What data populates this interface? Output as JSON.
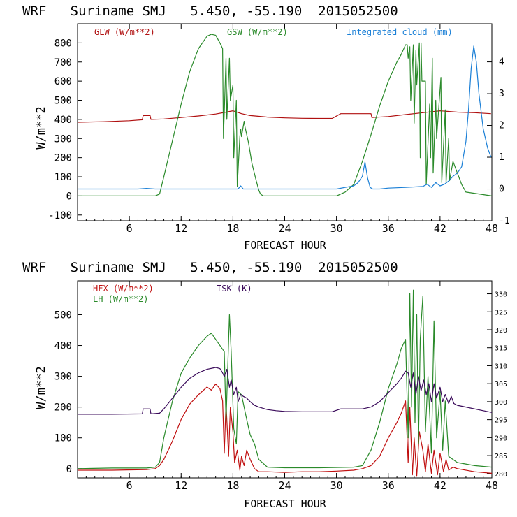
{
  "colors": {
    "glw": "#b01010",
    "gsw": "#2a8a2a",
    "cloud": "#1a7fd6",
    "hfx": "#c01010",
    "lh": "#2a8a2a",
    "tsk": "#3a0a5a",
    "axis": "#000000"
  },
  "chart_data": [
    {
      "type": "line",
      "title": "WRF   Suriname SMJ   5.450, -55.190  2015052500",
      "xlabel": "FORECAST HOUR",
      "ylabel": "W/m**2",
      "xlim": [
        0,
        48
      ],
      "ylim": [
        -130,
        900
      ],
      "y2lim": [
        -1,
        5.2
      ],
      "x_ticks": [
        "6",
        "12",
        "18",
        "24",
        "30",
        "36",
        "42",
        "48"
      ],
      "y_ticks": [
        "-100",
        "0",
        "100",
        "200",
        "300",
        "400",
        "500",
        "600",
        "700",
        "800"
      ],
      "y2_ticks": [
        "-1",
        "0",
        "1",
        "2",
        "3",
        "4"
      ],
      "series": [
        {
          "name": "GLW (W/m**2)",
          "axis": "left",
          "x": [
            0,
            3,
            6,
            7.5,
            7.6,
            8.4,
            8.5,
            10,
            12,
            14,
            16,
            17,
            18,
            19,
            20,
            22,
            24,
            26,
            28,
            29.5,
            30.5,
            32,
            34,
            34.1,
            36,
            38,
            40,
            42,
            44,
            46,
            47.9
          ],
          "values": [
            385,
            388,
            393,
            398,
            420,
            420,
            400,
            402,
            410,
            418,
            428,
            436,
            445,
            430,
            420,
            412,
            408,
            406,
            405,
            405,
            430,
            430,
            430,
            410,
            415,
            425,
            435,
            445,
            438,
            435,
            430
          ]
        },
        {
          "name": "GSW (W/m**2)",
          "axis": "left",
          "x": [
            0,
            9,
            9.5,
            10,
            11,
            12,
            13,
            14,
            15,
            15.5,
            16,
            16.5,
            16.8,
            16.9,
            17.2,
            17.3,
            17.6,
            17.7,
            18,
            18.1,
            18.4,
            18.5,
            18.8,
            18.9,
            19,
            19.3,
            19.4,
            19.8,
            20.2,
            20.7,
            21,
            21.2,
            21.5,
            30,
            31,
            32,
            33,
            34,
            35,
            36,
            37,
            37.5,
            38,
            38.2,
            38.3,
            38.5,
            38.6,
            38.9,
            39,
            39.2,
            39.3,
            39.6,
            39.7,
            39.8,
            39.9,
            40.3,
            40.4,
            40.8,
            40.9,
            41.1,
            41.2,
            41.5,
            41.6,
            42.1,
            42.2,
            42.6,
            42.7,
            43,
            43.1,
            43.5,
            44,
            44.5,
            45,
            48
          ],
          "values": [
            0,
            0,
            10,
            100,
            290,
            480,
            650,
            770,
            835,
            845,
            840,
            800,
            770,
            300,
            720,
            400,
            720,
            500,
            580,
            200,
            500,
            50,
            310,
            350,
            310,
            390,
            360,
            280,
            170,
            80,
            30,
            10,
            0,
            0,
            20,
            60,
            180,
            320,
            470,
            600,
            700,
            740,
            790,
            790,
            720,
            780,
            500,
            790,
            380,
            760,
            580,
            800,
            200,
            800,
            600,
            600,
            60,
            480,
            200,
            720,
            120,
            500,
            300,
            620,
            70,
            450,
            70,
            300,
            80,
            180,
            120,
            60,
            20,
            0
          ]
        },
        {
          "name": "Integrated cloud (mm)",
          "axis": "right",
          "x": [
            0,
            7,
            8,
            9,
            18.6,
            18.9,
            19.2,
            30,
            31,
            32,
            32.5,
            33,
            33.3,
            33.6,
            33.9,
            34.2,
            35,
            36,
            38,
            40,
            40.5,
            41,
            41.5,
            42,
            42.5,
            43,
            43.5,
            44,
            44.5,
            45,
            45.3,
            45.6,
            45.9,
            46.2,
            46.5,
            47,
            47.5,
            47.9
          ],
          "values": [
            0,
            0,
            0.02,
            0,
            0,
            0.1,
            0,
            0,
            0.05,
            0.1,
            0.2,
            0.4,
            0.85,
            0.35,
            0.05,
            0,
            0,
            0.03,
            0.05,
            0.08,
            0.15,
            0.05,
            0.2,
            0.1,
            0.15,
            0.25,
            0.4,
            0.5,
            0.7,
            1.5,
            2.5,
            3.8,
            4.5,
            4.0,
            3.0,
            1.9,
            1.3,
            1.0
          ]
        }
      ]
    },
    {
      "type": "line",
      "title": "WRF   Suriname SMJ   5.450, -55.190  2015052500",
      "xlabel": "FORECAST HOUR",
      "ylabel": "W/m**2",
      "xlim": [
        0,
        48
      ],
      "ylim": [
        -30,
        610
      ],
      "y2lim": [
        278.8,
        333.6
      ],
      "x_ticks": [
        "6",
        "12",
        "18",
        "24",
        "30",
        "36",
        "42",
        "48"
      ],
      "y_ticks": [
        "0",
        "100",
        "200",
        "300",
        "400",
        "500"
      ],
      "y2_ticks": [
        "280",
        "285",
        "290",
        "295",
        "300",
        "305",
        "310",
        "315",
        "320",
        "325",
        "330"
      ],
      "series": [
        {
          "name": "HFX (W/m**2)",
          "axis": "left",
          "x": [
            0,
            4,
            8,
            9,
            9.5,
            10,
            11,
            12,
            13,
            14,
            15,
            15.5,
            16,
            16.5,
            16.8,
            17,
            17.2,
            17.5,
            17.7,
            18,
            18.2,
            18.5,
            18.8,
            19,
            19.3,
            19.6,
            20,
            20.5,
            21,
            22,
            24,
            26,
            28,
            30,
            32,
            33,
            34,
            35,
            36,
            37,
            37.5,
            38,
            38.3,
            38.5,
            38.8,
            39,
            39.3,
            39.6,
            40,
            40.3,
            40.6,
            41,
            41.3,
            41.7,
            42,
            42.4,
            42.7,
            43,
            43.5,
            44,
            46,
            48
          ],
          "values": [
            -5,
            -5,
            -3,
            0,
            10,
            30,
            90,
            160,
            210,
            240,
            265,
            255,
            275,
            260,
            220,
            50,
            215,
            40,
            200,
            120,
            20,
            60,
            -5,
            40,
            10,
            60,
            30,
            0,
            -10,
            -10,
            -12,
            -10,
            -10,
            -8,
            -5,
            0,
            10,
            40,
            100,
            150,
            180,
            220,
            20,
            200,
            -20,
            100,
            -25,
            120,
            60,
            -10,
            80,
            -15,
            60,
            -20,
            50,
            -10,
            30,
            -5,
            5,
            0,
            -10,
            -15
          ]
        },
        {
          "name": "LH (W/m**2)",
          "axis": "left",
          "x": [
            0,
            4,
            8,
            9,
            9.5,
            10,
            11,
            12,
            13,
            14,
            15,
            15.5,
            16,
            17,
            17.2,
            17.6,
            17.8,
            18.1,
            18.4,
            18.6,
            19,
            19.3,
            19.6,
            20,
            20.5,
            21,
            22,
            24,
            28,
            32,
            33,
            34,
            35,
            36,
            37,
            37.5,
            38,
            38.3,
            38.5,
            38.7,
            38.9,
            39.1,
            39.3,
            39.5,
            39.7,
            40,
            40.3,
            40.6,
            41,
            41.3,
            41.6,
            42,
            42.3,
            42.6,
            43,
            43.5,
            44,
            46,
            48
          ],
          "values": [
            0,
            2,
            2,
            5,
            20,
            100,
            220,
            310,
            360,
            400,
            430,
            440,
            420,
            380,
            150,
            500,
            380,
            130,
            80,
            250,
            240,
            200,
            160,
            110,
            80,
            30,
            5,
            3,
            3,
            5,
            10,
            60,
            150,
            260,
            340,
            390,
            420,
            100,
            570,
            200,
            580,
            150,
            500,
            80,
            420,
            560,
            120,
            300,
            50,
            480,
            100,
            250,
            60,
            220,
            40,
            30,
            20,
            10,
            5
          ]
        },
        {
          "name": "TSK (K)",
          "axis": "right",
          "x": [
            0,
            4,
            7.5,
            7.6,
            8.4,
            8.5,
            9.5,
            10,
            11,
            12,
            13,
            14,
            15,
            16,
            16.5,
            16.8,
            17,
            17.3,
            17.6,
            17.8,
            18.1,
            18.4,
            18.6,
            18.9,
            19.2,
            19.6,
            20,
            20.5,
            21,
            22,
            23,
            24,
            26,
            28,
            29.5,
            30.5,
            32,
            33,
            34,
            35,
            36,
            37,
            37.5,
            38,
            38.3,
            38.6,
            38.9,
            39.2,
            39.5,
            39.8,
            40.1,
            40.4,
            40.7,
            41,
            41.3,
            41.6,
            42,
            42.3,
            42.6,
            43,
            43.3,
            43.6,
            44,
            45,
            47,
            48
          ],
          "values": [
            296.5,
            296.5,
            296.6,
            298,
            298,
            296.6,
            296.8,
            298,
            301,
            304,
            306.5,
            308,
            309,
            309.5,
            309.2,
            308,
            307,
            309,
            304,
            306,
            302,
            304,
            300,
            302,
            301.5,
            301,
            300,
            299,
            298.5,
            297.8,
            297.5,
            297.3,
            297.2,
            297.2,
            297.2,
            298,
            298,
            298,
            298.5,
            300,
            302.5,
            305,
            306.5,
            308.5,
            308,
            304,
            308,
            302,
            307,
            303,
            306,
            302,
            305,
            300,
            305,
            301,
            304,
            300,
            302,
            299.5,
            301.5,
            299.5,
            299,
            298.5,
            297.5,
            297
          ]
        }
      ]
    }
  ]
}
